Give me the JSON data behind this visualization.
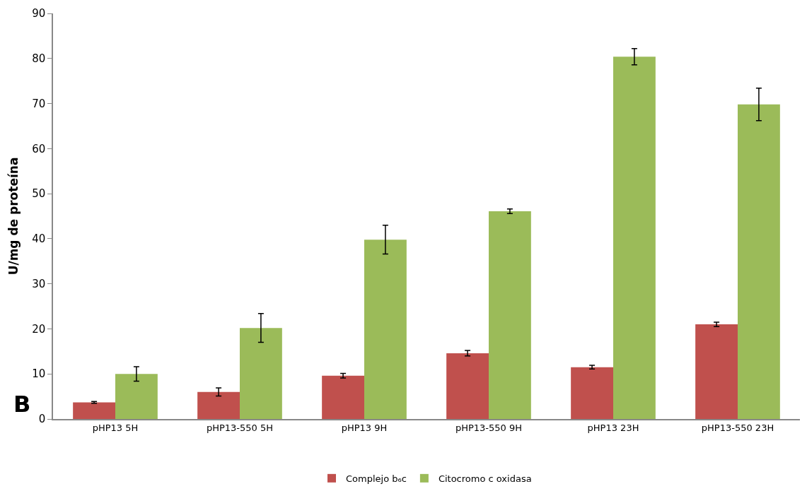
{
  "chart_data": {
    "type": "bar",
    "ylabel": "U/mg de proteína",
    "categories": [
      "pHP13 5H",
      "pHP13-550 5H",
      "pHP13 9H",
      "pHP13-550 9H",
      "pHP13 23H",
      "pHP13-550 23H"
    ],
    "series": [
      {
        "name": "Complejo b₆c",
        "color": "#c0504d",
        "values": [
          3.7,
          6.0,
          9.6,
          14.6,
          11.5,
          21.0
        ],
        "errors": [
          0.2,
          0.9,
          0.5,
          0.6,
          0.4,
          0.5
        ]
      },
      {
        "name": "Citocromo c oxidasa",
        "color": "#9bbb59",
        "values": [
          10.0,
          20.2,
          39.8,
          46.1,
          80.4,
          69.8
        ],
        "errors": [
          1.6,
          3.2,
          3.2,
          0.5,
          1.8,
          3.6
        ]
      }
    ],
    "ylim": [
      0,
      90
    ],
    "yticks": [
      0,
      10,
      20,
      30,
      40,
      50,
      60,
      70,
      80,
      90
    ],
    "grid": false,
    "legend": "bottom",
    "annotations": [
      "B"
    ]
  }
}
